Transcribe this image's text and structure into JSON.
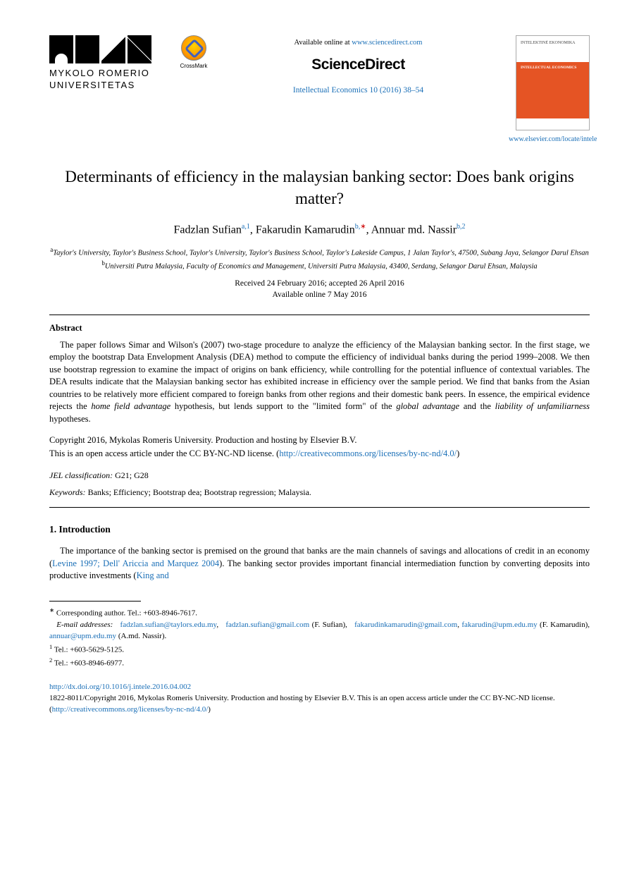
{
  "header": {
    "publisher_logo": {
      "line1": "MYKOLO ROMERIO",
      "line2": "UNIVERSITETAS"
    },
    "crossmark_label": "CrossMark",
    "available_text": "Available online at ",
    "available_url": "www.sciencedirect.com",
    "sd_logo": "ScienceDirect",
    "journal_ref": "Intellectual Economics 10 (2016) 38–54",
    "cover": {
      "title_small": "INTELEKTINĖ EKONOMIKA",
      "title_white": "INTELLECTUAL ECONOMICS"
    },
    "locate": "www.elsevier.com/locate/intele"
  },
  "title": "Determinants of efficiency in the malaysian banking sector: Does bank origins matter?",
  "authors": [
    {
      "name": "Fadzlan Sufian",
      "marks": "a,1"
    },
    {
      "name": "Fakarudin Kamarudin",
      "marks": "b,∗"
    },
    {
      "name": "Annuar md. Nassir",
      "marks": "b,2"
    }
  ],
  "affiliations": {
    "a": "Taylor's University, Taylor's Business School, Taylor's University, Taylor's Business School, Taylor's Lakeside Campus, 1 Jalan Taylor's, 47500, Subang Jaya, Selangor Darul Ehsan",
    "b": "Universiti Putra Malaysia, Faculty of Economics and Management, Universiti Putra Malaysia, 43400, Serdang, Selangor Darul Ehsan, Malaysia"
  },
  "dates": {
    "received_accepted": "Received 24 February 2016; accepted 26 April 2016",
    "online": "Available online 7 May 2016"
  },
  "abstract": {
    "head": "Abstract",
    "body": "The paper follows Simar and Wilson's (2007) two-stage procedure to analyze the efficiency of the Malaysian banking sector. In the first stage, we employ the bootstrap Data Envelopment Analysis (DEA) method to compute the efficiency of individual banks during the period 1999–2008. We then use bootstrap regression to examine the impact of origins on bank efficiency, while controlling for the potential influence of contextual variables. The DEA results indicate that the Malaysian banking sector has exhibited increase in efficiency over the sample period. We find that banks from the Asian countries to be relatively more efficient compared to foreign banks from other regions and their domestic bank peers. In essence, the empirical evidence rejects the <i>home field advantage</i> hypothesis, but lends support to the \"limited form\" of the <i>global advantage</i> and the <i>liability of unfamiliarness</i> hypotheses."
  },
  "copyright": {
    "line1": "Copyright 2016, Mykolas Romeris University. Production and hosting by Elsevier B.V.",
    "line2_pre": "This is an open access article under the CC BY-NC-ND license. (",
    "line2_url": "http://creativecommons.org/licenses/by-nc-nd/4.0/",
    "line2_post": ")"
  },
  "jel": {
    "label": "JEL classification:",
    "value": " G21; G28"
  },
  "keywords": {
    "label": "Keywords:",
    "value": " Banks; Efficiency; Bootstrap dea; Bootstrap regression; Malaysia."
  },
  "section1": {
    "head": "1. Introduction",
    "p1_a": "The importance of the banking sector is premised on the ground that banks are the main channels of savings and allocations of credit in an economy (",
    "p1_link1": "Levine 1997; Dell' Ariccia and Marquez 2004",
    "p1_b": "). The banking sector provides important financial intermediation function by converting deposits into productive investments (",
    "p1_link2": "King and"
  },
  "footnotes": {
    "corr": "Corresponding author. Tel.: +603-8946-7617.",
    "email_label": "E-mail addresses:",
    "emails": [
      {
        "addr": "fadzlan.sufian@taylors.edu.my",
        "who": ""
      },
      {
        "addr": "fadzlan.sufian@gmail.com",
        "who": " (F. Sufian),"
      },
      {
        "addr": "fakarudinkamarudin@gmail.com",
        "who": ""
      },
      {
        "addr": "fakarudin@upm.edu.my",
        "who": " (F. Kamarudin),"
      },
      {
        "addr": "annuar@upm.edu.my",
        "who": " (A.md. Nassir)."
      }
    ],
    "tel1": "Tel.: +603-5629-5125.",
    "tel2": "Tel.: +603-8946-6977."
  },
  "doi": {
    "url": "http://dx.doi.org/10.1016/j.intele.2016.04.002",
    "line": "1822-8011/Copyright 2016, Mykolas Romeris University. Production and hosting by Elsevier B.V. This is an open access article under the CC BY-NC-ND license. (",
    "lic_url": "http://creativecommons.org/licenses/by-nc-nd/4.0/",
    "post": ")"
  }
}
